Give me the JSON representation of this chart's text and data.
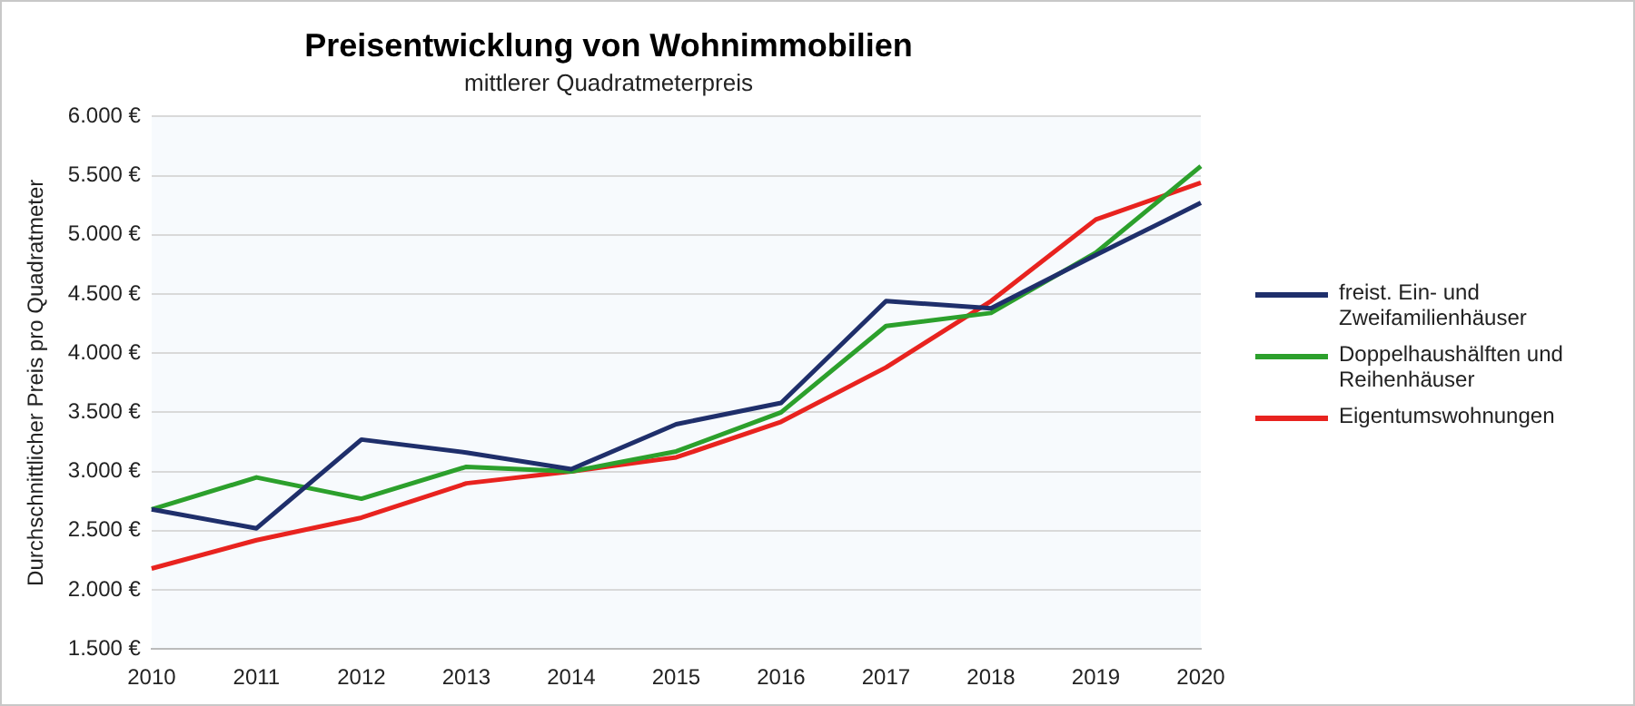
{
  "chart_data": {
    "type": "line",
    "title": "Preisentwicklung von Wohnimmobilien",
    "subtitle": "mittlerer Quadratmeterpreis",
    "ylabel": "Durchschnittlicher Preis pro Quadratmeter",
    "categories": [
      "2010",
      "2011",
      "2012",
      "2013",
      "2014",
      "2015",
      "2016",
      "2017",
      "2018",
      "2019",
      "2020"
    ],
    "series": [
      {
        "name": "freist. Ein- und Zweifamilienhäuser",
        "color": "#1f2f6b",
        "values": [
          2680,
          2520,
          3270,
          3160,
          3020,
          3400,
          3580,
          4440,
          4380,
          4830,
          5270
        ]
      },
      {
        "name": "Doppelhaushälften und Reihenhäuser",
        "color": "#2ca02c",
        "values": [
          2680,
          2950,
          2770,
          3040,
          3000,
          3170,
          3500,
          4230,
          4340,
          4850,
          5580
        ]
      },
      {
        "name": "Eigentumswohnungen",
        "color": "#e8231f",
        "values": [
          2180,
          2420,
          2610,
          2900,
          3000,
          3120,
          3420,
          3880,
          4440,
          5130,
          5440
        ]
      }
    ],
    "ylim": [
      1500,
      6000
    ],
    "yticks": [
      {
        "value": 1500,
        "label": "1.500 €"
      },
      {
        "value": 2000,
        "label": "2.000 €"
      },
      {
        "value": 2500,
        "label": "2.500 €"
      },
      {
        "value": 3000,
        "label": "3.000 €"
      },
      {
        "value": 3500,
        "label": "3.500 €"
      },
      {
        "value": 4000,
        "label": "4.000 €"
      },
      {
        "value": 4500,
        "label": "4.500 €"
      },
      {
        "value": 5000,
        "label": "5.000 €"
      },
      {
        "value": 5500,
        "label": "5.500 €"
      },
      {
        "value": 6000,
        "label": "6.000 €"
      }
    ],
    "grid": "y",
    "legend": "right",
    "marker": "none",
    "line_style": "solid"
  }
}
